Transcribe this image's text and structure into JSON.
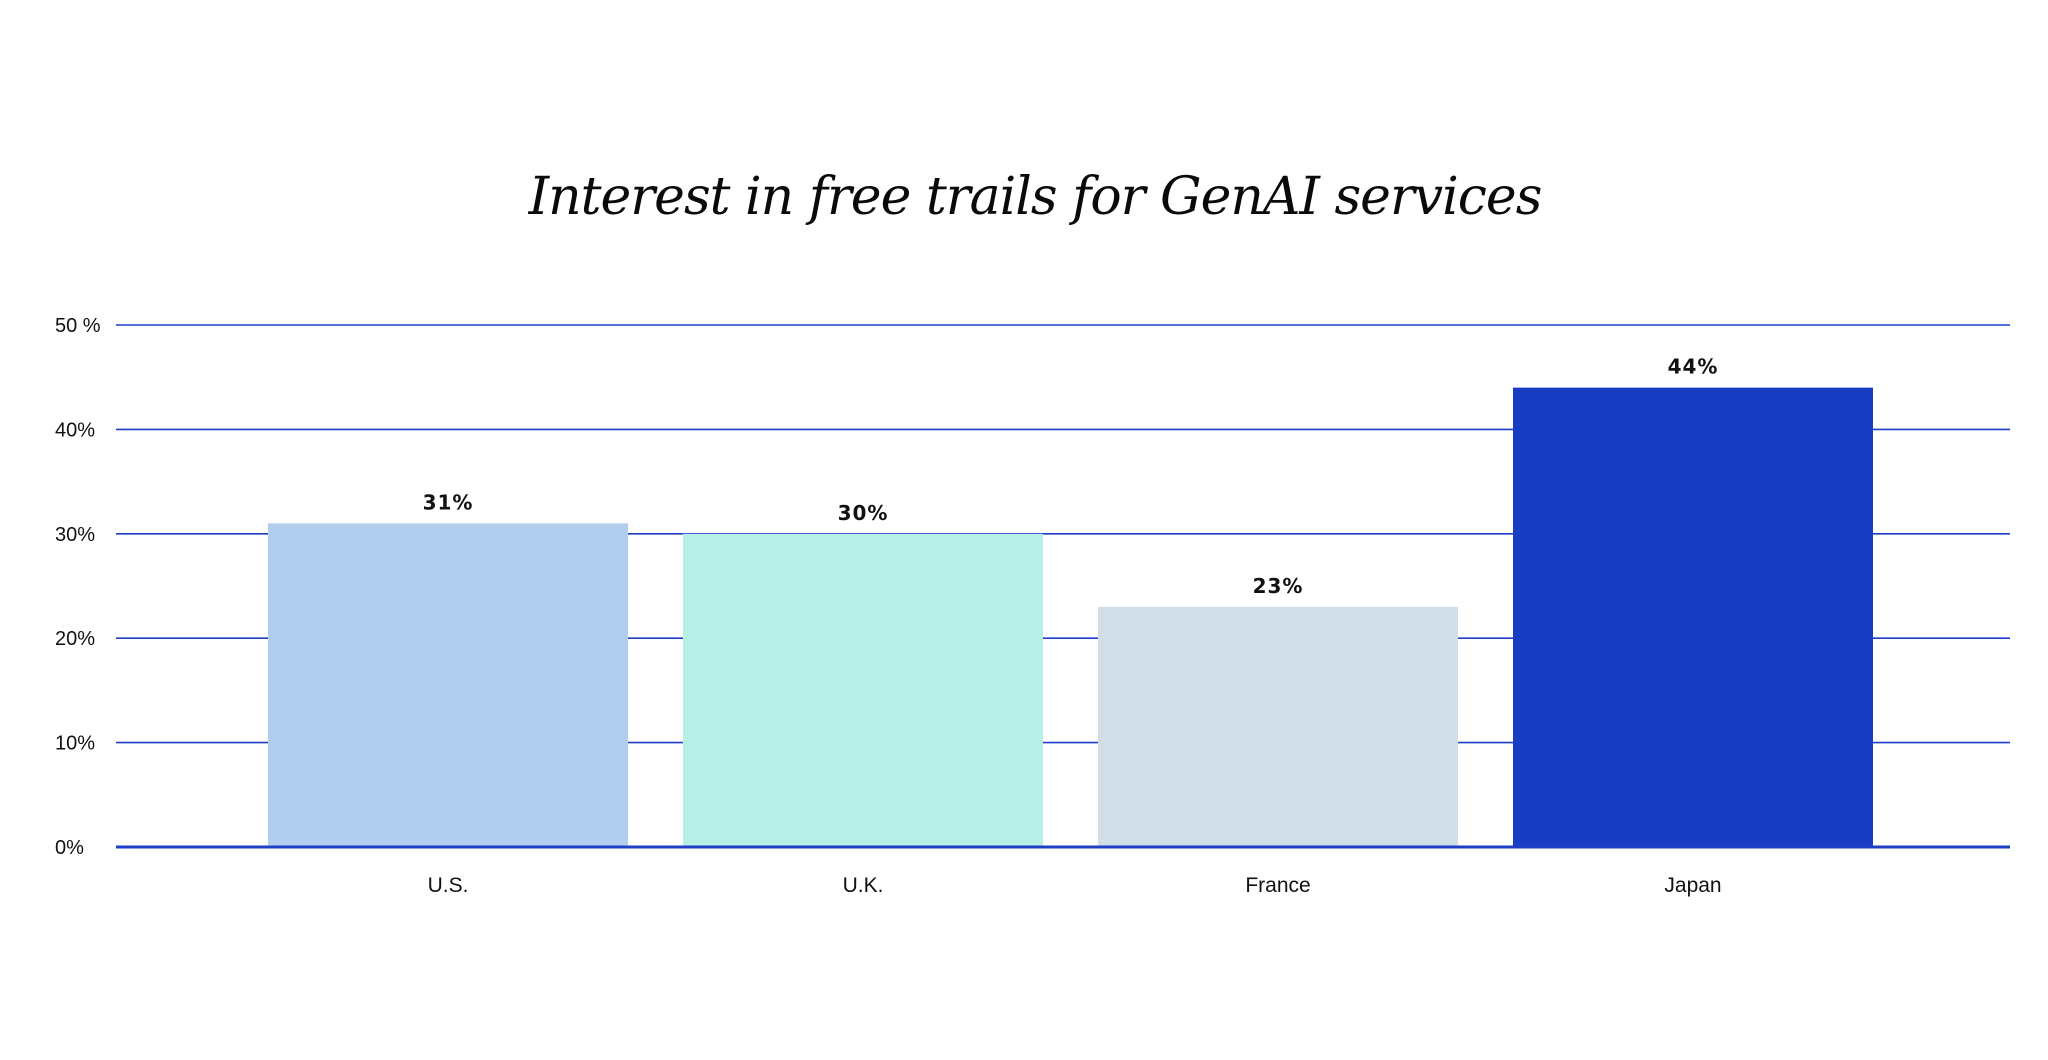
{
  "chart_data": {
    "type": "bar",
    "title": "Interest in free trails for GenAI services",
    "xlabel": "",
    "ylabel": "",
    "categories": [
      "U.S.",
      "U.K.",
      "France",
      "Japan"
    ],
    "values": [
      31,
      30,
      23,
      44
    ],
    "value_labels": [
      "31%",
      "30%",
      "23%",
      "44%"
    ],
    "bar_colors": [
      "#b1cef1",
      "#b7efe6",
      "#d2dee7",
      "#183cc3"
    ],
    "ylim": [
      0,
      50
    ],
    "y_ticks": [
      0,
      10,
      20,
      30,
      40,
      50
    ],
    "y_tick_labels": [
      "0%",
      "10%",
      "20%",
      "30%",
      "40%",
      "50 %"
    ],
    "grid": true,
    "grid_color": "#1f3ec7",
    "legend": "none"
  }
}
